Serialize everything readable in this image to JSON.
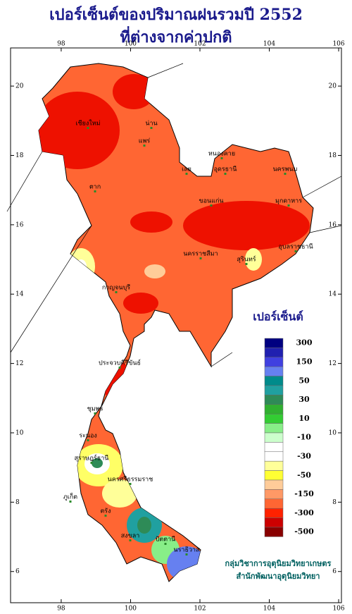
{
  "header": {
    "title": [
      "เปอร์เซ็นต์ของปริมาณฝนรวมปี 2552",
      "ที่ต่างจากค่าปกติ"
    ]
  },
  "map": {
    "xlim": [
      96.54,
      106.08
    ],
    "ylim": [
      5.1,
      21.1
    ],
    "xticks": [
      98,
      100,
      102,
      104,
      106
    ],
    "yticks": [
      6,
      8,
      10,
      12,
      14,
      16,
      18,
      20
    ],
    "fill": "#ff6633",
    "places": [
      "เชียงใหม่",
      "น่าน",
      "แพร่",
      "ตาก",
      "เลย",
      "หนองคาย",
      "อุดรธานี",
      "นครพนม",
      "มุกดาหาร",
      "ขอนแก่น",
      "นครราชสีมา",
      "สุรินทร์",
      "อุบลราชธานี",
      "กาญจนบุรี",
      "ประจวบคีรีขันธ์",
      "ชุมพร",
      "ระนอง",
      "สุราษฎร์ธานี",
      "นครศรีธรรมราช",
      "ภูเก็ต",
      "ตรัง",
      "สงขลา",
      "ปัตตานี",
      "นราธิวาส"
    ]
  },
  "legend": {
    "title": "เปอร์เซ็นต์",
    "labels": [
      300,
      150,
      50,
      30,
      10,
      -10,
      -30,
      -50,
      -150,
      -300,
      -500
    ],
    "colors": [
      "#000080",
      "#2020b0",
      "#4040e0",
      "#6680f0",
      "#008b8b",
      "#20a0a0",
      "#2e8b57",
      "#30b030",
      "#33cc33",
      "#88ee88",
      "#ccffcc",
      "#ffffff",
      "#ffffff",
      "#ffff99",
      "#ffff33",
      "#ffcc99",
      "#ff9966",
      "#ff6633",
      "#ff2200",
      "#cc0000",
      "#880000"
    ]
  },
  "credit": [
    "กลุ่มวิชาการอุตุนิยมวิทยาเกษตร",
    "สำนักพัฒนาอุตุนิยมวิทยา"
  ]
}
